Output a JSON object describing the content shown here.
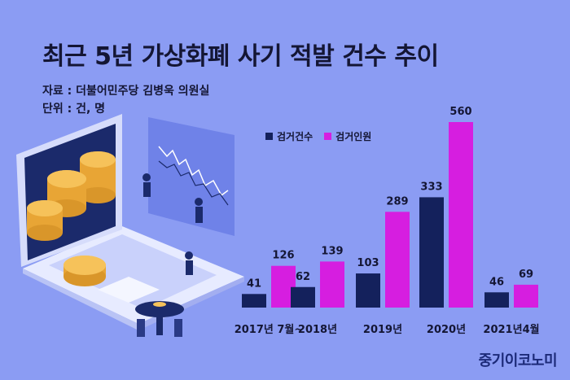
{
  "title": "최근 5년 가상화폐 사기 적발 건수 추이",
  "source": "자료 : 더불어민주당 김병욱 의원실",
  "unit": "단위 : 건, 명",
  "brand": "중기이코노미",
  "colors": {
    "background": "#8b9cf3",
    "series1": "#14215c",
    "series2": "#d61ee0",
    "text": "#141634"
  },
  "chart_data": {
    "type": "bar",
    "categories": [
      "2017년 7월~",
      "2018년",
      "2019년",
      "2020년",
      "2021년4월"
    ],
    "series": [
      {
        "name": "검거건수",
        "values": [
          41,
          62,
          103,
          333,
          46
        ],
        "color": "#14215c"
      },
      {
        "name": "검거인원",
        "values": [
          126,
          139,
          289,
          560,
          69
        ],
        "color": "#d61ee0"
      }
    ],
    "ylim": [
      0,
      560
    ],
    "legend_position": "top-left",
    "grid": false
  }
}
